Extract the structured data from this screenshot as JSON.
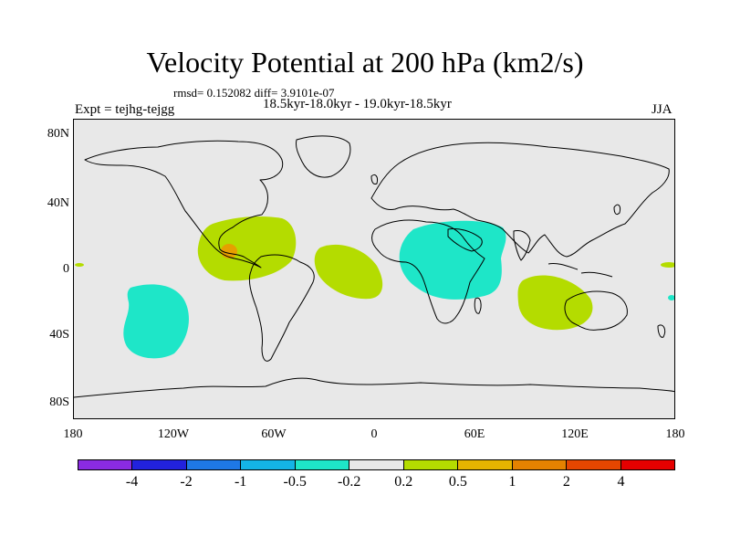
{
  "title": "Velocity Potential at 200 hPa (km2/s)",
  "stats": "rmsd= 0.152082 diff= 3.9101e-07",
  "periods": "18.5kyr-18.0kyr - 19.0kyr-18.5kyr",
  "experiment": "Expt = tejhg-tejgg",
  "season": "JJA",
  "y_axis_labels": [
    "80N",
    "40N",
    "0",
    "40S",
    "80S"
  ],
  "x_axis_labels": [
    "180",
    "120W",
    "60W",
    "0",
    "60E",
    "120E",
    "180"
  ],
  "colorbar": {
    "labels": [
      "-4",
      "-2",
      "-1",
      "-0.5",
      "-0.2",
      "0.2",
      "0.5",
      "1",
      "2",
      "4"
    ],
    "colors": [
      "#8a2be2",
      "#2222dd",
      "#1e78e6",
      "#14b4e6",
      "#1ee6c8",
      "#e8e8e8",
      "#b4dc00",
      "#e6b400",
      "#e68200",
      "#e64600",
      "#e60000"
    ]
  },
  "colors": {
    "map_background": "#e8e8e8",
    "negative_region": "#1ee6c8",
    "positive_region": "#b4dc00",
    "positive_strong": "#e6a000"
  }
}
